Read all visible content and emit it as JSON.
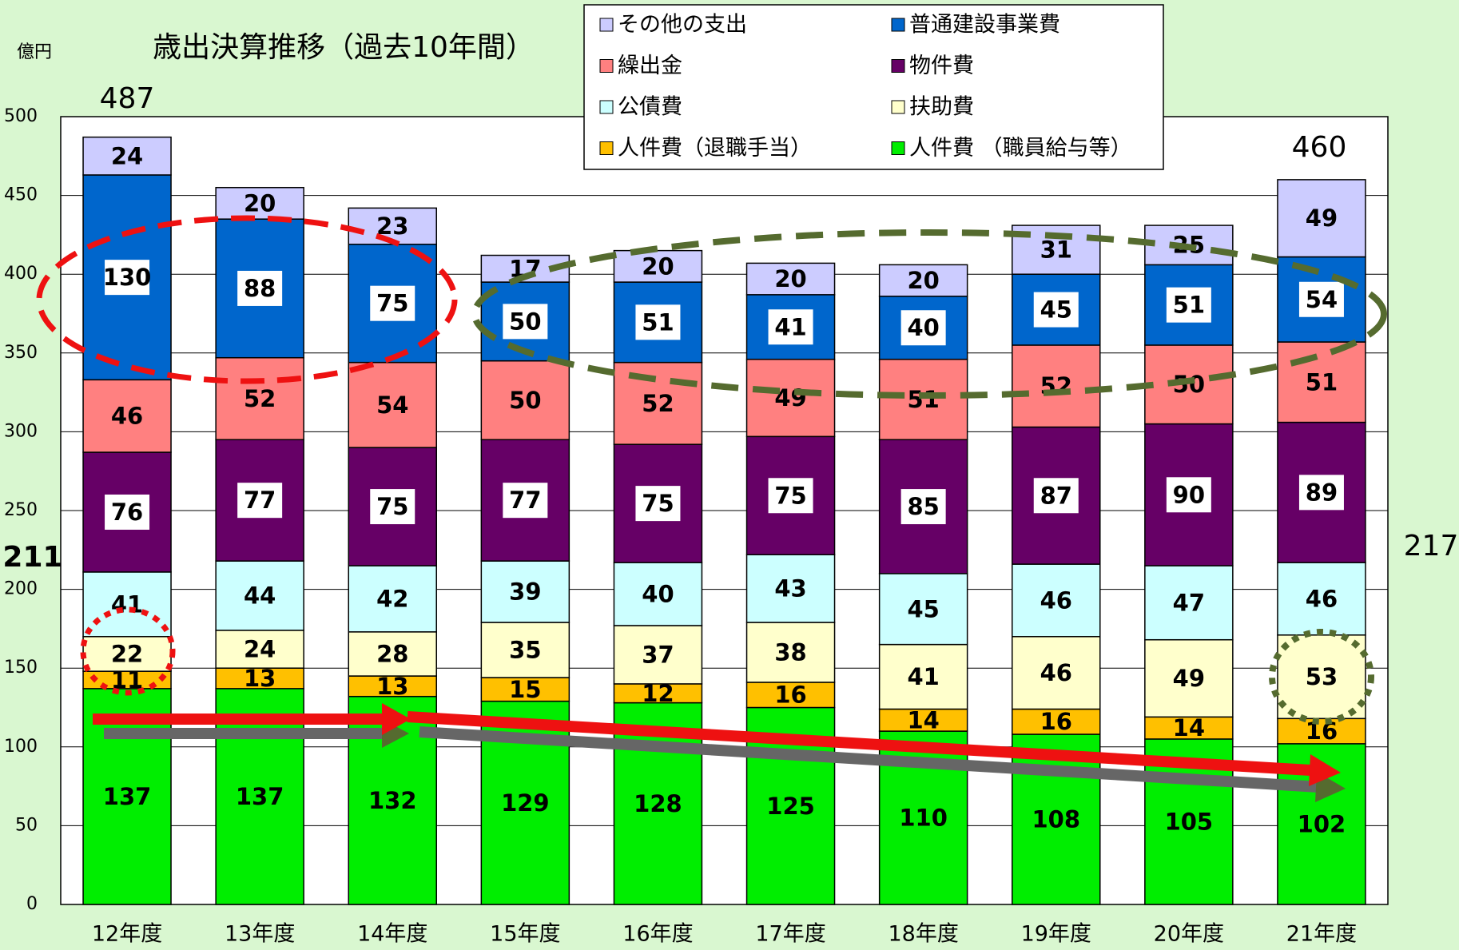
{
  "chart_data": {
    "type": "stacked_bar",
    "title": "歳出決算推移（過去10年間）",
    "y_unit": "億円",
    "categories": [
      "12年度",
      "13年度",
      "14年度",
      "15年度",
      "16年度",
      "17年度",
      "18年度",
      "19年度",
      "20年度",
      "21年度"
    ],
    "series": [
      {
        "name": "人件費 （職員給与等）",
        "color": "#00ee00",
        "values": [
          137,
          137,
          132,
          129,
          128,
          125,
          110,
          108,
          105,
          102
        ]
      },
      {
        "name": "人件費（退職手当）",
        "color": "#ffc000",
        "values": [
          11,
          13,
          13,
          15,
          12,
          16,
          14,
          16,
          14,
          16
        ]
      },
      {
        "name": "扶助費",
        "color": "#ffffcc",
        "values": [
          22,
          24,
          28,
          35,
          37,
          38,
          41,
          46,
          49,
          53
        ]
      },
      {
        "name": "公債費",
        "color": "#ccffff",
        "values": [
          41,
          44,
          42,
          39,
          40,
          43,
          45,
          46,
          47,
          46
        ]
      },
      {
        "name": "物件費",
        "color": "#660066",
        "boxed_labels": true,
        "values": [
          76,
          77,
          75,
          77,
          75,
          75,
          85,
          87,
          90,
          89
        ]
      },
      {
        "name": "繰出金",
        "color": "#ff8080",
        "values": [
          46,
          52,
          54,
          50,
          52,
          49,
          51,
          52,
          50,
          51
        ]
      },
      {
        "name": "普通建設事業費",
        "color": "#0066cc",
        "boxed_labels": true,
        "values": [
          130,
          88,
          75,
          50,
          51,
          41,
          40,
          45,
          51,
          54
        ]
      },
      {
        "name": "その他の支出",
        "color": "#ccccff",
        "values": [
          24,
          20,
          23,
          17,
          20,
          20,
          20,
          31,
          25,
          49
        ]
      }
    ],
    "annotations": [
      487,
      460,
      211,
      217
    ],
    "ylim": [
      0,
      500
    ],
    "yticks": [
      0,
      50,
      100,
      150,
      200,
      250,
      300,
      350,
      400,
      450,
      500
    ],
    "grid": true,
    "legend": "top-right"
  }
}
